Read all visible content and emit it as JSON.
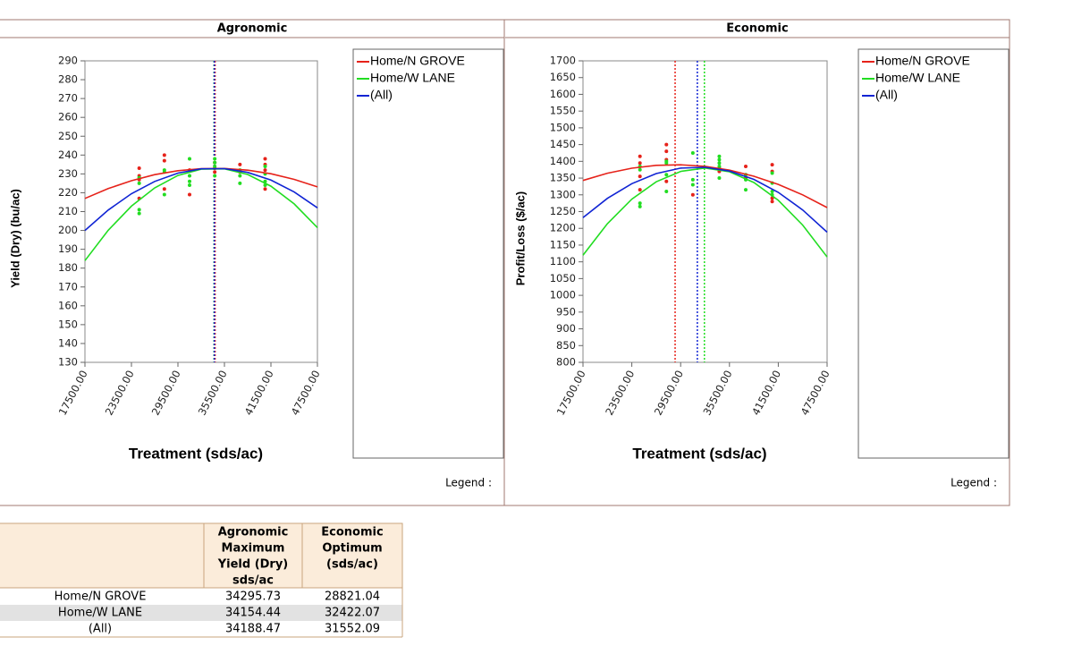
{
  "chart_data": [
    {
      "type": "line",
      "title": "Agronomic",
      "y_label": "Yield (Dry) (bu/ac)",
      "x_label": "Treatment (sds/ac)",
      "legend_title": "Legend :",
      "xlim": [
        17500,
        47500
      ],
      "ylim": [
        130,
        290
      ],
      "xticks": [
        {
          "value": 17500,
          "label": "17500.00"
        },
        {
          "value": 23500,
          "label": "23500.00"
        },
        {
          "value": 29500,
          "label": "29500.00"
        },
        {
          "value": 35500,
          "label": "35500.00"
        },
        {
          "value": 41500,
          "label": "41500.00"
        },
        {
          "value": 47500,
          "label": "47500.00"
        }
      ],
      "yticks": [
        130,
        140,
        150,
        160,
        170,
        180,
        190,
        200,
        210,
        220,
        230,
        240,
        250,
        260,
        270,
        280,
        290
      ],
      "x": [
        17500,
        20500,
        23500,
        26500,
        29500,
        32500,
        35500,
        38500,
        41500,
        44500,
        47500
      ],
      "series": [
        {
          "name": "Home/N GROVE",
          "color": "#e6221a",
          "values": [
            217.0,
            222.2,
            226.4,
            229.6,
            231.7,
            232.8,
            232.9,
            232.0,
            230.1,
            227.1,
            223.1
          ]
        },
        {
          "name": "Home/W LANE",
          "color": "#22dd22",
          "values": [
            184.0,
            200.1,
            212.9,
            222.6,
            229.2,
            232.5,
            232.7,
            229.7,
            223.5,
            214.1,
            201.5
          ]
        },
        {
          "name": "(All)",
          "color": "#1024d4",
          "values": [
            200.0,
            210.8,
            219.5,
            226.0,
            230.4,
            232.7,
            232.8,
            230.8,
            226.7,
            220.4,
            212.0
          ]
        }
      ],
      "points": [
        {
          "color": "#e6221a",
          "x": [
            24500,
            24500,
            24500,
            24500,
            27750,
            27750,
            27750,
            31000,
            31000,
            34250,
            34250,
            34250,
            37500,
            37500,
            40750,
            40750,
            40750,
            40750
          ],
          "values": [
            233,
            229,
            227,
            217,
            240,
            237,
            222,
            219,
            232,
            236,
            233,
            231,
            235,
            231,
            238,
            235,
            232,
            222
          ]
        },
        {
          "color": "#22dd22",
          "x": [
            24500,
            24500,
            24500,
            24500,
            27750,
            27750,
            27750,
            31000,
            31000,
            31000,
            31000,
            34250,
            34250,
            34250,
            34250,
            37500,
            37500,
            37500,
            40750,
            40750,
            40750,
            40750
          ],
          "values": [
            228,
            225,
            211,
            209,
            232,
            231,
            219,
            238,
            229,
            226,
            224,
            238,
            236,
            234,
            229,
            232,
            229,
            225,
            234,
            230,
            226,
            224
          ]
        }
      ]
    },
    {
      "type": "line",
      "title": "Economic",
      "y_label": "Profit/Loss ($/ac)",
      "x_label": "Treatment (sds/ac)",
      "legend_title": "Legend :",
      "xlim": [
        17500,
        47500
      ],
      "ylim": [
        800,
        1700
      ],
      "xticks": [
        {
          "value": 17500,
          "label": "17500.00"
        },
        {
          "value": 23500,
          "label": "23500.00"
        },
        {
          "value": 29500,
          "label": "29500.00"
        },
        {
          "value": 35500,
          "label": "35500.00"
        },
        {
          "value": 41500,
          "label": "41500.00"
        },
        {
          "value": 47500,
          "label": "47500.00"
        }
      ],
      "yticks": [
        800,
        850,
        900,
        950,
        1000,
        1050,
        1100,
        1150,
        1200,
        1250,
        1300,
        1350,
        1400,
        1450,
        1500,
        1550,
        1600,
        1650,
        1700
      ],
      "x": [
        17500,
        20500,
        23500,
        26500,
        29500,
        32500,
        35500,
        38500,
        41500,
        44500,
        47500
      ],
      "series": [
        {
          "name": "Home/N GROVE",
          "color": "#e6221a",
          "values": [
            1343.0,
            1364.6,
            1379.6,
            1388.0,
            1389.8,
            1385.0,
            1373.6,
            1355.6,
            1331.1,
            1299.9,
            1262.1
          ]
        },
        {
          "name": "Home/W LANE",
          "color": "#22dd22",
          "values": [
            1120.0,
            1214.0,
            1287.0,
            1339.0,
            1370.0,
            1380.0,
            1368.9,
            1336.9,
            1283.7,
            1209.6,
            1114.5
          ]
        },
        {
          "name": "(All)",
          "color": "#1024d4",
          "values": [
            1232.0,
            1289.6,
            1333.4,
            1363.5,
            1379.8,
            1382.3,
            1371.1,
            1346.1,
            1307.3,
            1254.8,
            1188.5
          ]
        }
      ],
      "points": [
        {
          "color": "#e6221a",
          "x": [
            24500,
            24500,
            24500,
            24500,
            27750,
            27750,
            27750,
            27750,
            31000,
            34250,
            34250,
            37500,
            37500,
            40750,
            40750,
            40750,
            40750
          ],
          "values": [
            1415,
            1395,
            1355,
            1315,
            1450,
            1430,
            1405,
            1340,
            1300,
            1380,
            1370,
            1385,
            1350,
            1390,
            1370,
            1290,
            1280
          ]
        },
        {
          "color": "#22dd22",
          "x": [
            24500,
            24500,
            24500,
            24500,
            27750,
            27750,
            27750,
            27750,
            31000,
            31000,
            31000,
            34250,
            34250,
            34250,
            34250,
            34250,
            37500,
            37500,
            37500,
            40750,
            40750,
            40750,
            40750
          ],
          "values": [
            1385,
            1375,
            1275,
            1265,
            1400,
            1395,
            1360,
            1310,
            1425,
            1345,
            1330,
            1415,
            1405,
            1395,
            1385,
            1350,
            1360,
            1345,
            1315,
            1365,
            1335,
            1310,
            1300
          ]
        }
      ]
    }
  ],
  "table": {
    "headers": [
      [
        "Agronomic",
        "Maximum",
        "Yield (Dry)",
        "sds/ac"
      ],
      [
        "Economic",
        "Optimum",
        "(sds/ac)"
      ]
    ],
    "rows": [
      {
        "label": "Home/N GROVE",
        "values": [
          34295.73,
          28821.04
        ]
      },
      {
        "label": "Home/W LANE",
        "values": [
          34154.44,
          32422.07
        ]
      },
      {
        "label": "(All)",
        "values": [
          34188.47,
          31552.09
        ]
      }
    ]
  }
}
